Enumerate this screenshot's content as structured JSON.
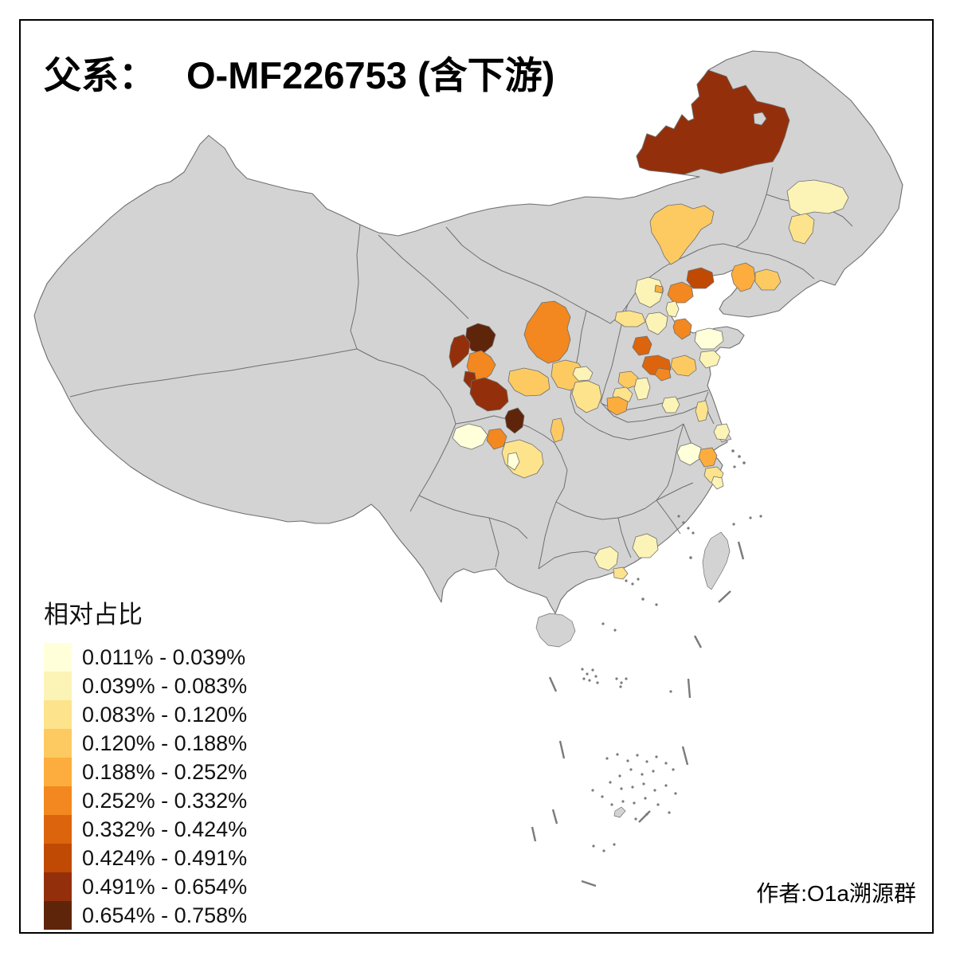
{
  "title": {
    "prefix": "父系：",
    "name": "O-MF226753 (含下游)",
    "full": "父系： O-MF226753 (含下游)"
  },
  "author_credit": "作者:O1a溯源群",
  "legend": {
    "title": "相对占比",
    "classes": [
      {
        "label": "0.011% - 0.039%",
        "color": "#FFFFD9"
      },
      {
        "label": "0.039% - 0.083%",
        "color": "#FCF3B7"
      },
      {
        "label": "0.083% - 0.120%",
        "color": "#FDE38C"
      },
      {
        "label": "0.120% - 0.188%",
        "color": "#FDCA61"
      },
      {
        "label": "0.188% - 0.252%",
        "color": "#FDAD3D"
      },
      {
        "label": "0.252% - 0.332%",
        "color": "#F2881F"
      },
      {
        "label": "0.332% - 0.424%",
        "color": "#DC640D"
      },
      {
        "label": "0.424% - 0.491%",
        "color": "#C04A03"
      },
      {
        "label": "0.491% - 0.654%",
        "color": "#93300B"
      },
      {
        "label": "0.654% - 0.758%",
        "color": "#5E250B"
      }
    ]
  },
  "map": {
    "land_color": "#d3d3d3",
    "boundary_color": "#6f6f6f",
    "sea_color": "#ffffff",
    "frame_color": "#000000",
    "regions": [
      {
        "name": "hulunbuir",
        "class": 9
      },
      {
        "name": "heilongjiang-central",
        "class": 2
      },
      {
        "name": "heilongjiang-south",
        "class": 3
      },
      {
        "name": "jilin-west",
        "class": 4
      },
      {
        "name": "liaoning-central",
        "class": 5
      },
      {
        "name": "liaoning-east",
        "class": 4
      },
      {
        "name": "hebei-qinhuangdao",
        "class": 8
      },
      {
        "name": "hebei-chengde-south",
        "class": 6
      },
      {
        "name": "hebei-tangshan",
        "class": 6
      },
      {
        "name": "beijing-outer",
        "class": 2
      },
      {
        "name": "beijing-city",
        "class": 5
      },
      {
        "name": "tianjin",
        "class": 2
      },
      {
        "name": "hebei-baoding",
        "class": 3
      },
      {
        "name": "hebei-langfang",
        "class": 2
      },
      {
        "name": "hebei-shijiazhuang",
        "class": 7
      },
      {
        "name": "shandong-jinan",
        "class": 7
      },
      {
        "name": "shandong-taian",
        "class": 6
      },
      {
        "name": "shandong-weifang",
        "class": 4
      },
      {
        "name": "shandong-yantai",
        "class": 1
      },
      {
        "name": "shandong-qingdao",
        "class": 2
      },
      {
        "name": "hebei-xingtai",
        "class": 4
      },
      {
        "name": "hebei-handan",
        "class": 2
      },
      {
        "name": "henan-anyang",
        "class": 3
      },
      {
        "name": "henan-zhengzhou",
        "class": 5
      },
      {
        "name": "shandong-jining",
        "class": 2
      },
      {
        "name": "gansu-lanzhou",
        "class": 10
      },
      {
        "name": "qinghai-haidong",
        "class": 9
      },
      {
        "name": "gansu-linxia",
        "class": 6
      },
      {
        "name": "gansu-gannan",
        "class": 9
      },
      {
        "name": "gansu-dingxi",
        "class": 9
      },
      {
        "name": "gansu-tianshui",
        "class": 10
      },
      {
        "name": "ningxia",
        "class": 6
      },
      {
        "name": "gansu-pingliang",
        "class": 4
      },
      {
        "name": "shaanxi-yanan",
        "class": 4
      },
      {
        "name": "shanxi-linfen",
        "class": 2
      },
      {
        "name": "shanxi-yuncheng",
        "class": 3
      },
      {
        "name": "sichuan-chengdu",
        "class": 1
      },
      {
        "name": "sichuan-deyang",
        "class": 6
      },
      {
        "name": "sichuan-nanchong",
        "class": 3
      },
      {
        "name": "sichuan-suining",
        "class": 1
      },
      {
        "name": "shaanxi-hanzhong",
        "class": 4
      },
      {
        "name": "jiangsu-yangzhou",
        "class": 3
      },
      {
        "name": "jiangsu-nantong",
        "class": 2
      },
      {
        "name": "anhui-xuancheng",
        "class": 1
      },
      {
        "name": "zhejiang-hangzhou",
        "class": 5
      },
      {
        "name": "zhejiang-ningbo",
        "class": 3
      },
      {
        "name": "zhejiang-wenzhou",
        "class": 2
      },
      {
        "name": "guangdong-heyuan",
        "class": 2
      },
      {
        "name": "guangdong-zhaoqing",
        "class": 2
      },
      {
        "name": "guangdong-foshan",
        "class": 3
      }
    ]
  }
}
